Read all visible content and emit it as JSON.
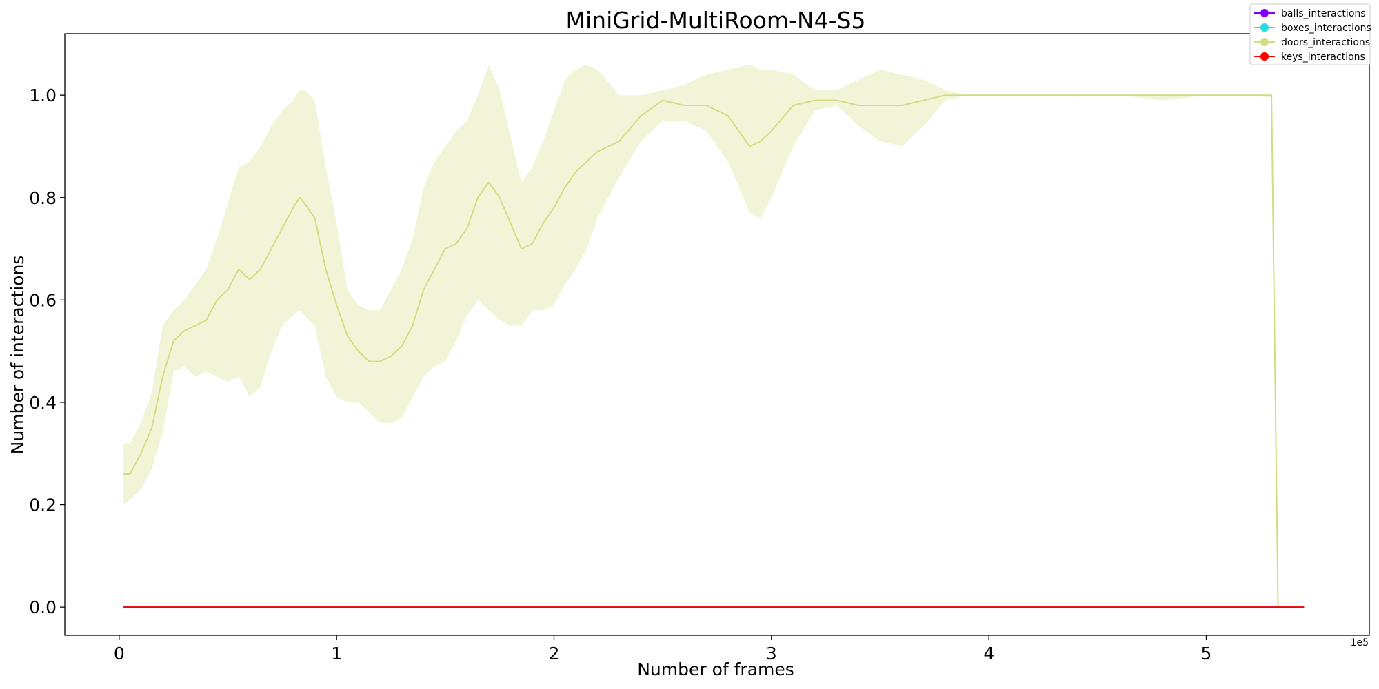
{
  "chart_data": {
    "type": "line",
    "title": "MiniGrid-MultiRoom-N4-S5",
    "xlabel": "Number of frames",
    "ylabel": "Number of interactions",
    "x_offset_label": "1e5",
    "xlim": [
      -0.25,
      5.75
    ],
    "ylim": [
      -0.055,
      1.12
    ],
    "x_ticks": [
      0,
      1,
      2,
      3,
      4,
      5
    ],
    "x_tick_labels": [
      "0",
      "1",
      "2",
      "3",
      "4",
      "5"
    ],
    "y_ticks": [
      0.0,
      0.2,
      0.4,
      0.6,
      0.8,
      1.0
    ],
    "y_tick_labels": [
      "0.0",
      "0.2",
      "0.4",
      "0.6",
      "0.8",
      "1.0"
    ],
    "grid": false,
    "legend_position": "top-right",
    "series": [
      {
        "name": "balls_interactions",
        "color": "#8000ff",
        "x": [
          0.02,
          5.45
        ],
        "y": [
          0,
          0
        ]
      },
      {
        "name": "boxes_interactions",
        "color": "#2adddd",
        "x": [
          0.02,
          5.45
        ],
        "y": [
          0,
          0
        ]
      },
      {
        "name": "doors_interactions",
        "color": "#d4dc7f",
        "x": [
          0.02,
          0.05,
          0.1,
          0.15,
          0.2,
          0.25,
          0.3,
          0.35,
          0.4,
          0.45,
          0.5,
          0.55,
          0.6,
          0.65,
          0.7,
          0.75,
          0.8,
          0.83,
          0.85,
          0.9,
          0.95,
          1.0,
          1.05,
          1.1,
          1.15,
          1.2,
          1.25,
          1.3,
          1.35,
          1.4,
          1.45,
          1.5,
          1.55,
          1.6,
          1.65,
          1.7,
          1.75,
          1.8,
          1.85,
          1.9,
          1.95,
          2.0,
          2.05,
          2.1,
          2.15,
          2.2,
          2.3,
          2.4,
          2.5,
          2.6,
          2.7,
          2.8,
          2.9,
          2.95,
          3.0,
          3.1,
          3.2,
          3.3,
          3.4,
          3.5,
          3.6,
          3.7,
          3.8,
          3.9,
          4.0,
          4.2,
          4.4,
          4.6,
          4.8,
          5.0,
          5.2,
          5.3,
          5.33
        ],
        "y": [
          0.26,
          0.26,
          0.3,
          0.35,
          0.45,
          0.52,
          0.54,
          0.55,
          0.56,
          0.6,
          0.62,
          0.66,
          0.64,
          0.66,
          0.7,
          0.74,
          0.78,
          0.8,
          0.79,
          0.76,
          0.66,
          0.59,
          0.53,
          0.5,
          0.48,
          0.48,
          0.49,
          0.51,
          0.55,
          0.62,
          0.66,
          0.7,
          0.71,
          0.74,
          0.8,
          0.83,
          0.8,
          0.75,
          0.7,
          0.71,
          0.75,
          0.78,
          0.82,
          0.85,
          0.87,
          0.89,
          0.91,
          0.96,
          0.99,
          0.98,
          0.98,
          0.96,
          0.9,
          0.91,
          0.93,
          0.98,
          0.99,
          0.99,
          0.98,
          0.98,
          0.98,
          0.99,
          1.0,
          1.0,
          1.0,
          1.0,
          1.0,
          1.0,
          1.0,
          1.0,
          1.0,
          1.0,
          0.0
        ],
        "lower": [
          0.2,
          0.21,
          0.23,
          0.27,
          0.34,
          0.46,
          0.47,
          0.45,
          0.46,
          0.45,
          0.44,
          0.45,
          0.41,
          0.43,
          0.5,
          0.55,
          0.57,
          0.58,
          0.57,
          0.55,
          0.45,
          0.41,
          0.4,
          0.4,
          0.38,
          0.36,
          0.36,
          0.37,
          0.41,
          0.45,
          0.47,
          0.48,
          0.52,
          0.57,
          0.6,
          0.58,
          0.56,
          0.55,
          0.55,
          0.58,
          0.58,
          0.59,
          0.63,
          0.66,
          0.7,
          0.76,
          0.84,
          0.91,
          0.95,
          0.95,
          0.93,
          0.87,
          0.77,
          0.76,
          0.8,
          0.9,
          0.97,
          0.98,
          0.94,
          0.91,
          0.9,
          0.94,
          0.99,
          1.0,
          1.0,
          1.0,
          0.997,
          1.0,
          0.99,
          1.0,
          1.0,
          0.995,
          0.0
        ],
        "upper": [
          0.32,
          0.32,
          0.36,
          0.42,
          0.55,
          0.58,
          0.6,
          0.63,
          0.66,
          0.72,
          0.79,
          0.86,
          0.87,
          0.9,
          0.94,
          0.97,
          0.99,
          1.01,
          1.01,
          0.99,
          0.86,
          0.75,
          0.62,
          0.59,
          0.58,
          0.58,
          0.62,
          0.66,
          0.72,
          0.82,
          0.87,
          0.9,
          0.93,
          0.95,
          1.0,
          1.06,
          1.01,
          0.92,
          0.83,
          0.86,
          0.91,
          0.97,
          1.03,
          1.05,
          1.06,
          1.05,
          1.0,
          1.0,
          1.01,
          1.02,
          1.04,
          1.05,
          1.06,
          1.05,
          1.05,
          1.04,
          1.01,
          1.01,
          1.03,
          1.05,
          1.04,
          1.03,
          1.01,
          1.0,
          1.0,
          1.0,
          1.0,
          1.0,
          1.0,
          1.0,
          1.0,
          1.0,
          0.0
        ]
      },
      {
        "name": "keys_interactions",
        "color": "#ff0000",
        "x": [
          0.02,
          5.45
        ],
        "y": [
          0,
          0
        ]
      }
    ]
  }
}
